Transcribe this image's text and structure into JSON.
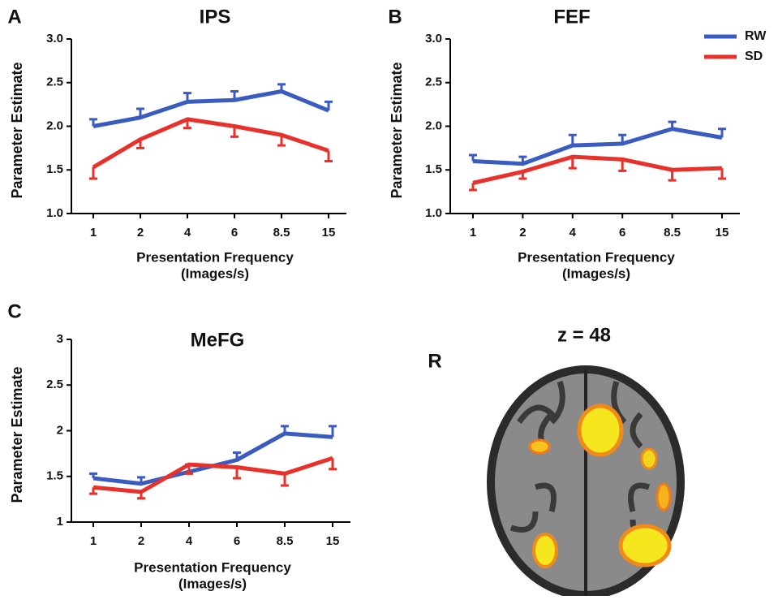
{
  "chart_data": [
    {
      "type": "line",
      "panel": "A",
      "title": "IPS",
      "ylabel": "Parameter Estimate",
      "xlabel": [
        "Presentation Frequency",
        "(Images/s)"
      ],
      "categories": [
        "1",
        "2",
        "4",
        "6",
        "8.5",
        "15"
      ],
      "series": [
        {
          "color": "#3a5bbf",
          "values": [
            2.0,
            2.1,
            2.28,
            2.3,
            2.4,
            2.18
          ],
          "errors": [
            0.08,
            0.1,
            0.1,
            0.1,
            0.08,
            0.1
          ]
        },
        {
          "color": "#e8312a",
          "values": [
            1.53,
            1.85,
            2.08,
            2.0,
            1.9,
            1.72
          ],
          "errors": [
            0.13,
            0.1,
            0.1,
            0.12,
            0.12,
            0.12
          ]
        }
      ],
      "ylim": [
        1.0,
        3.0
      ],
      "yticks": [
        {
          "value": 1.0,
          "label": "1.0"
        },
        1.5,
        {
          "value": 2.0,
          "label": "2.0"
        },
        2.5,
        {
          "value": 3.0,
          "label": "3.0"
        }
      ]
    },
    {
      "type": "line",
      "panel": "B",
      "title": "FEF",
      "ylabel": "Parameter Estimate",
      "xlabel": [
        "Presentation Frequency",
        "(Images/s)"
      ],
      "categories": [
        "1",
        "2",
        "4",
        "6",
        "8.5",
        "15"
      ],
      "series": [
        {
          "name": "RW",
          "color": "#3a5bbf",
          "values": [
            1.6,
            1.57,
            1.78,
            1.8,
            1.97,
            1.87
          ],
          "errors": [
            0.07,
            0.08,
            0.12,
            0.1,
            0.08,
            0.1
          ]
        },
        {
          "name": "SD",
          "color": "#e8312a",
          "values": [
            1.35,
            1.48,
            1.65,
            1.62,
            1.5,
            1.52
          ],
          "errors": [
            0.08,
            0.08,
            0.13,
            0.13,
            0.12,
            0.12
          ]
        }
      ],
      "ylim": [
        1.0,
        3.0
      ],
      "yticks": [
        {
          "value": 1.0,
          "label": "1.0"
        },
        1.5,
        {
          "value": 2.0,
          "label": "2.0"
        },
        2.5,
        {
          "value": 3.0,
          "label": "3.0"
        }
      ],
      "legend": "top-right"
    },
    {
      "type": "line",
      "panel": "C",
      "title": "MeFG",
      "ylabel": "Parameter Estimate",
      "xlabel": [
        "Presentation Frequency",
        "(Images/s)"
      ],
      "categories": [
        "1",
        "2",
        "4",
        "6",
        "8.5",
        "15"
      ],
      "series": [
        {
          "color": "#3a5bbf",
          "values": [
            1.48,
            1.42,
            1.55,
            1.68,
            1.97,
            1.93
          ],
          "errors": [
            0.05,
            0.07,
            0.08,
            0.08,
            0.08,
            0.12
          ]
        },
        {
          "color": "#e8312a",
          "values": [
            1.38,
            1.33,
            1.63,
            1.6,
            1.53,
            1.7
          ],
          "errors": [
            0.07,
            0.07,
            0.1,
            0.12,
            0.13,
            0.12
          ]
        }
      ],
      "ylim": [
        1,
        3
      ],
      "yticks": [
        1,
        1.5,
        2,
        2.5,
        3
      ]
    }
  ],
  "brain": {
    "title": "z = 48",
    "side_label": "R"
  }
}
